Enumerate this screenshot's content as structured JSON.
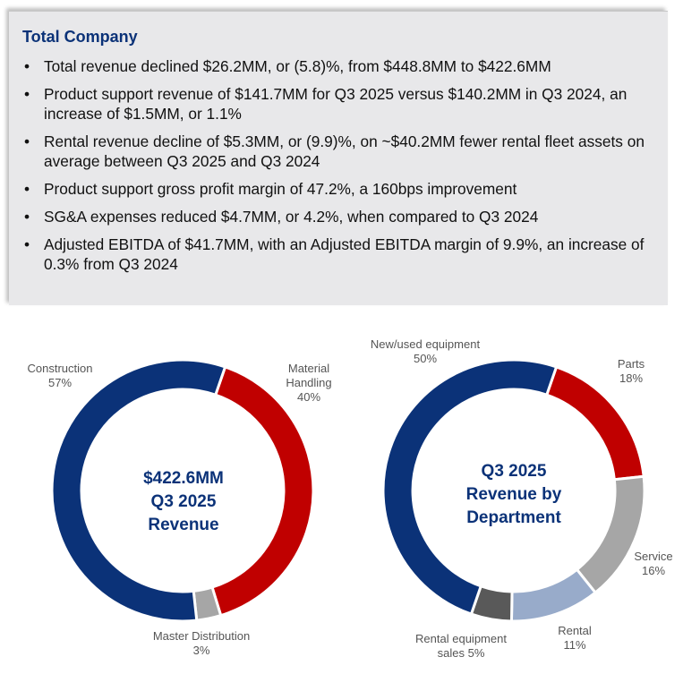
{
  "summary": {
    "title": "Total Company",
    "bullets": [
      "Total revenue declined $26.2MM, or (5.8)%, from $448.8MM to $422.6MM",
      "Product support revenue of $141.7MM for Q3 2025 versus $140.2MM in Q3 2024, an increase of $1.5MM, or 1.1%",
      "Rental revenue decline of $5.3MM, or (9.9)%, on ~$40.2MM fewer rental fleet assets on average between Q3 2025 and Q3 2024",
      "Product support gross profit margin of 47.2%, a 160bps improvement",
      "SG&A expenses reduced $4.7MM, or 4.2%, when compared to Q3 2024",
      "Adjusted EBITDA of $41.7MM, with an Adjusted EBITDA margin of 9.9%, an increase of 0.3% from Q3 2024"
    ]
  },
  "chart_data": [
    {
      "type": "pie",
      "center_text": [
        "$422.6MM",
        "Q3 2025",
        "Revenue"
      ],
      "slices": [
        {
          "label": "Material Handling",
          "value": 40,
          "pct_label": "40%",
          "color": "#c00000"
        },
        {
          "label": "Master Distribution",
          "value": 3,
          "pct_label": "3%",
          "color": "#a6a6a6"
        },
        {
          "label": "Construction",
          "value": 57,
          "pct_label": "57%",
          "color": "#0b3278"
        }
      ]
    },
    {
      "type": "pie",
      "center_text": [
        "Q3 2025",
        "Revenue by",
        "Department"
      ],
      "slices": [
        {
          "label": "Parts",
          "value": 18,
          "pct_label": "18%",
          "color": "#c00000"
        },
        {
          "label": "Service",
          "value": 16,
          "pct_label": "16%",
          "color": "#a6a6a6"
        },
        {
          "label": "Rental",
          "value": 11,
          "pct_label": "11%",
          "color": "#98abca"
        },
        {
          "label": "Rental equipment sales",
          "value": 5,
          "pct_label": "5%",
          "color": "#595959"
        },
        {
          "label": "New/used equipment",
          "value": 50,
          "pct_label": "50%",
          "color": "#0b3278"
        }
      ]
    }
  ]
}
